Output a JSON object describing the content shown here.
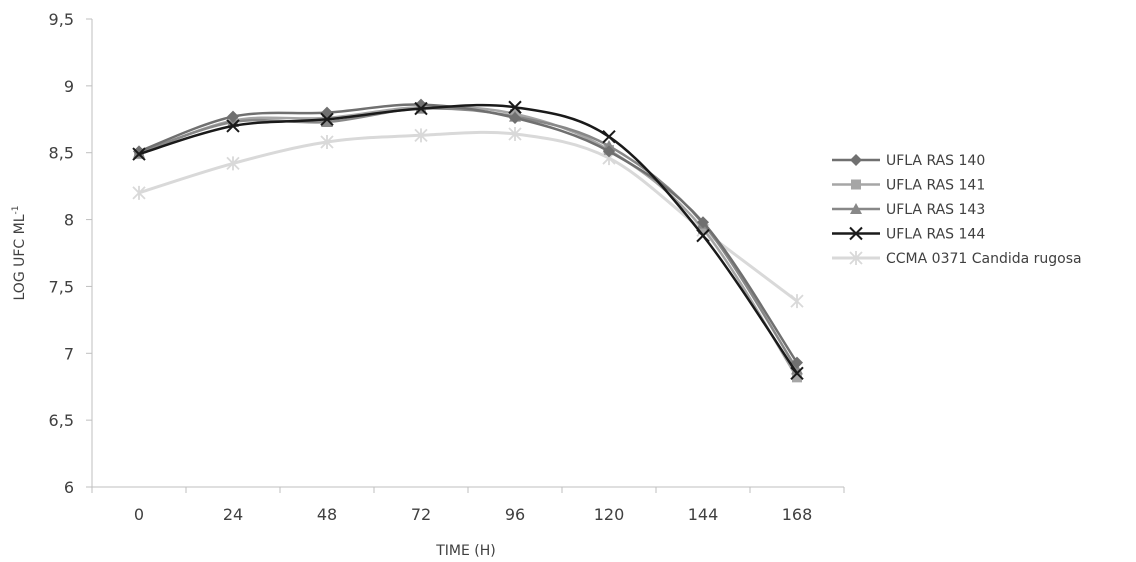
{
  "chart_data": {
    "type": "line",
    "title": "",
    "xlabel": "TIME (H)",
    "ylabel_main": "LOG UFC ML",
    "ylabel_sup": "-1",
    "categories": [
      "0",
      "24",
      "48",
      "72",
      "96",
      "120",
      "144",
      "168"
    ],
    "ylim": [
      6,
      9.5
    ],
    "yticks": [
      "6",
      "6,5",
      "7",
      "7,5",
      "8",
      "8,5",
      "9",
      "9,5"
    ],
    "ytick_values": [
      6,
      6.5,
      7,
      7.5,
      8,
      8.5,
      9,
      9.5
    ],
    "grid": false,
    "legend_position": "right",
    "series": [
      {
        "name": "UFLA RAS 140",
        "values": [
          8.51,
          8.77,
          8.8,
          8.86,
          8.76,
          8.51,
          7.98,
          6.93
        ],
        "color": "#707070",
        "marker": "diamond",
        "width": 2.5
      },
      {
        "name": "UFLA RAS 141",
        "values": [
          8.49,
          8.74,
          8.76,
          8.84,
          8.79,
          8.52,
          7.93,
          6.82
        ],
        "color": "#a6a6a6",
        "marker": "square",
        "width": 2.5
      },
      {
        "name": "UFLA RAS 143",
        "values": [
          8.5,
          8.73,
          8.73,
          8.83,
          8.77,
          8.55,
          7.97,
          6.88
        ],
        "color": "#888888",
        "marker": "triangle",
        "width": 2.5
      },
      {
        "name": "UFLA RAS 144",
        "values": [
          8.49,
          8.7,
          8.75,
          8.83,
          8.84,
          8.62,
          7.88,
          6.85
        ],
        "color": "#1a1a1a",
        "marker": "x",
        "width": 2.5
      },
      {
        "name": "CCMA 0371 Candida rugosa",
        "values": [
          8.2,
          8.42,
          8.58,
          8.63,
          8.64,
          8.46,
          7.92,
          7.39
        ],
        "color": "#d9d9d9",
        "marker": "star",
        "width": 3
      }
    ]
  }
}
